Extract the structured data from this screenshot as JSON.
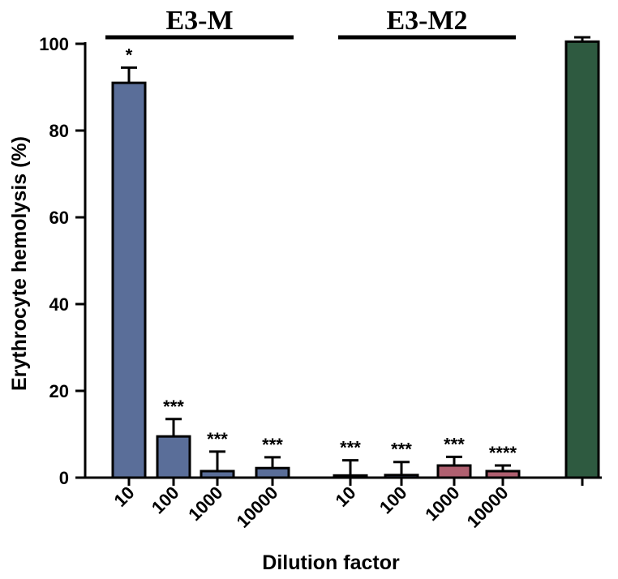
{
  "chart_data": {
    "type": "bar",
    "xlabel": "Dilution factor",
    "ylabel": "Erythrocyte hemolysis (%)",
    "ylim": [
      0,
      100
    ],
    "yticks": [
      0,
      20,
      40,
      60,
      80,
      100
    ],
    "groups": [
      {
        "label": "E3-M"
      },
      {
        "label": "E3-M2"
      }
    ],
    "bars": [
      {
        "category": "10",
        "value": 91.0,
        "error": 3.5,
        "sig": "*",
        "color": "#5a6e99"
      },
      {
        "category": "100",
        "value": 9.5,
        "error": 4.0,
        "sig": "***",
        "color": "#5a6e99"
      },
      {
        "category": "1000",
        "value": 1.5,
        "error": 4.5,
        "sig": "***",
        "color": "#5a6e99"
      },
      {
        "category": "10000",
        "value": 2.2,
        "error": 2.5,
        "sig": "***",
        "color": "#5a6e99"
      },
      {
        "category": "10",
        "value": 0.5,
        "error": 3.5,
        "sig": "***",
        "color": "#5a6e99"
      },
      {
        "category": "100",
        "value": 0.6,
        "error": 3.0,
        "sig": "***",
        "color": "#5a6e99"
      },
      {
        "category": "1000",
        "value": 2.8,
        "error": 2.0,
        "sig": "***",
        "color": "#b06070"
      },
      {
        "category": "10000",
        "value": 1.5,
        "error": 1.3,
        "sig": "****",
        "color": "#b06070"
      },
      {
        "category": "",
        "value": 100.5,
        "error": 1.0,
        "sig": "",
        "color": "#2e5a40"
      }
    ]
  }
}
